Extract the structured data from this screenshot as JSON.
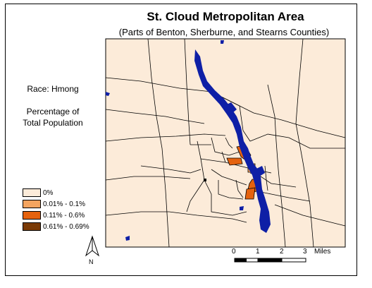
{
  "title": "St. Cloud Metropolitan Area",
  "subtitle": "(Parts of Benton, Sherburne, and Stearns Counties)",
  "race_label": "Race: Hmong",
  "measure_line1": "Percentage of",
  "measure_line2": "Total Population",
  "legend": [
    {
      "label": "0%",
      "color": "#FCEBD9"
    },
    {
      "label": "0.01% - 0.1%",
      "color": "#F4A45F"
    },
    {
      "label": "0.11% - 0.6%",
      "color": "#E5620E"
    },
    {
      "label": "0.61% - 0.69%",
      "color": "#7A3A06"
    }
  ],
  "colors": {
    "background_fill": "#FCEBD9",
    "water": "#0E1FA6",
    "boundary": "#000000"
  },
  "scale_bar": {
    "ticks": [
      "0",
      "1",
      "2",
      "3"
    ],
    "unit": "Miles"
  },
  "north_arrow_label": "N"
}
